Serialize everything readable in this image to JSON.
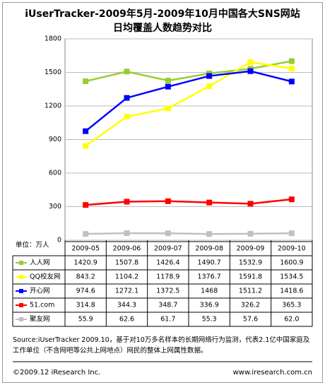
{
  "chart_data": {
    "type": "line",
    "title": "iUserTracker-2009年5月-2009年10月中国各大SNS网站",
    "subtitle": "日均覆盖人数趋势对比",
    "unit_label": "单位：万人",
    "categories": [
      "2009-05",
      "2009-06",
      "2009-07",
      "2009-08",
      "2009-09",
      "2009-10"
    ],
    "ylim": [
      0,
      1800
    ],
    "yticks": [
      0,
      300,
      600,
      900,
      1200,
      1500,
      1800
    ],
    "grid": true,
    "series": [
      {
        "name": "人人网",
        "color": "#99cc33",
        "values": [
          1420.9,
          1507.8,
          1426.4,
          1490.7,
          1532.9,
          1600.9
        ]
      },
      {
        "name": "QQ校友网",
        "color": "#ffff00",
        "values": [
          843.2,
          1104.2,
          1178.9,
          1376.7,
          1591.8,
          1534.5
        ]
      },
      {
        "name": "开心网",
        "color": "#0000ff",
        "values": [
          974.6,
          1272.1,
          1372.5,
          1468,
          1511.2,
          1418.6
        ]
      },
      {
        "name": "51.com",
        "color": "#ff0000",
        "values": [
          314.8,
          344.3,
          348.7,
          336.9,
          326.2,
          365.3
        ]
      },
      {
        "name": "聚友网",
        "color": "#c0c0c0",
        "values": [
          55.9,
          62.6,
          61.7,
          55.3,
          57.6,
          62
        ],
        "value_labels": [
          "55.9",
          "62.6",
          "61.7",
          "55.3",
          "57.6",
          "62.0"
        ]
      }
    ],
    "source_note": "Source:iUserTracker 2009.10，基于对10万多名样本的长期网络行为监测，代表2.1亿中国家庭及工作单位（不含网吧等公共上网地点）网民的整体上网属性数据。",
    "copyright": "©2009.12 iResearch Inc.",
    "website": "www.iresearch.com.cn"
  }
}
